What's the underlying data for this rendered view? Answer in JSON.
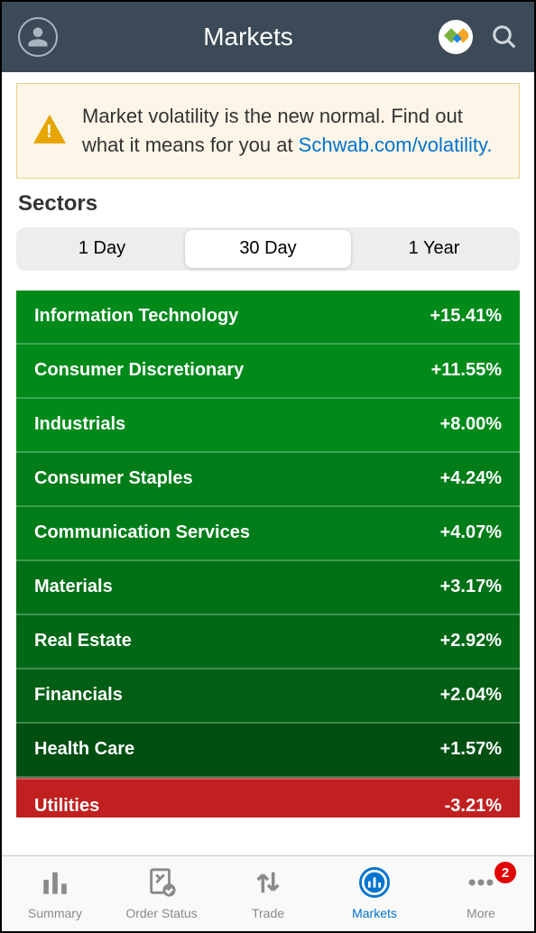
{
  "header": {
    "title": "Markets"
  },
  "alert": {
    "text_before_link": "Market volatility is the new normal. Find out what it means for you at ",
    "link_text": "Schwab.com/volatility."
  },
  "section_title": "Sectors",
  "segments": [
    {
      "label": "1 Day",
      "active": false
    },
    {
      "label": "30 Day",
      "active": true
    },
    {
      "label": "1 Year",
      "active": false
    }
  ],
  "sectors": [
    {
      "name": "Information Technology",
      "change": "+15.41%",
      "bg": "#008a1a"
    },
    {
      "name": "Consumer Discretionary",
      "change": "+11.55%",
      "bg": "#008a1a"
    },
    {
      "name": "Industrials",
      "change": "+8.00%",
      "bg": "#008a1a"
    },
    {
      "name": "Consumer Staples",
      "change": "+4.24%",
      "bg": "#007d18"
    },
    {
      "name": "Communication Services",
      "change": "+4.07%",
      "bg": "#007d18"
    },
    {
      "name": "Materials",
      "change": "+3.17%",
      "bg": "#007017"
    },
    {
      "name": "Real Estate",
      "change": "+2.92%",
      "bg": "#006816"
    },
    {
      "name": "Financials",
      "change": "+2.04%",
      "bg": "#005f14"
    },
    {
      "name": "Health Care",
      "change": "+1.57%",
      "bg": "#004f12"
    },
    {
      "name": "Utilities",
      "change": "-3.21%",
      "bg": "#c12020",
      "neg": true
    }
  ],
  "tabs": [
    {
      "label": "Summary",
      "icon": "bars",
      "active": false
    },
    {
      "label": "Order Status",
      "icon": "order",
      "active": false
    },
    {
      "label": "Trade",
      "icon": "trade",
      "active": false
    },
    {
      "label": "Markets",
      "icon": "markets",
      "active": true
    },
    {
      "label": "More",
      "icon": "more",
      "active": false,
      "badge": "2"
    }
  ],
  "colors": {
    "link": "#0073cf"
  }
}
